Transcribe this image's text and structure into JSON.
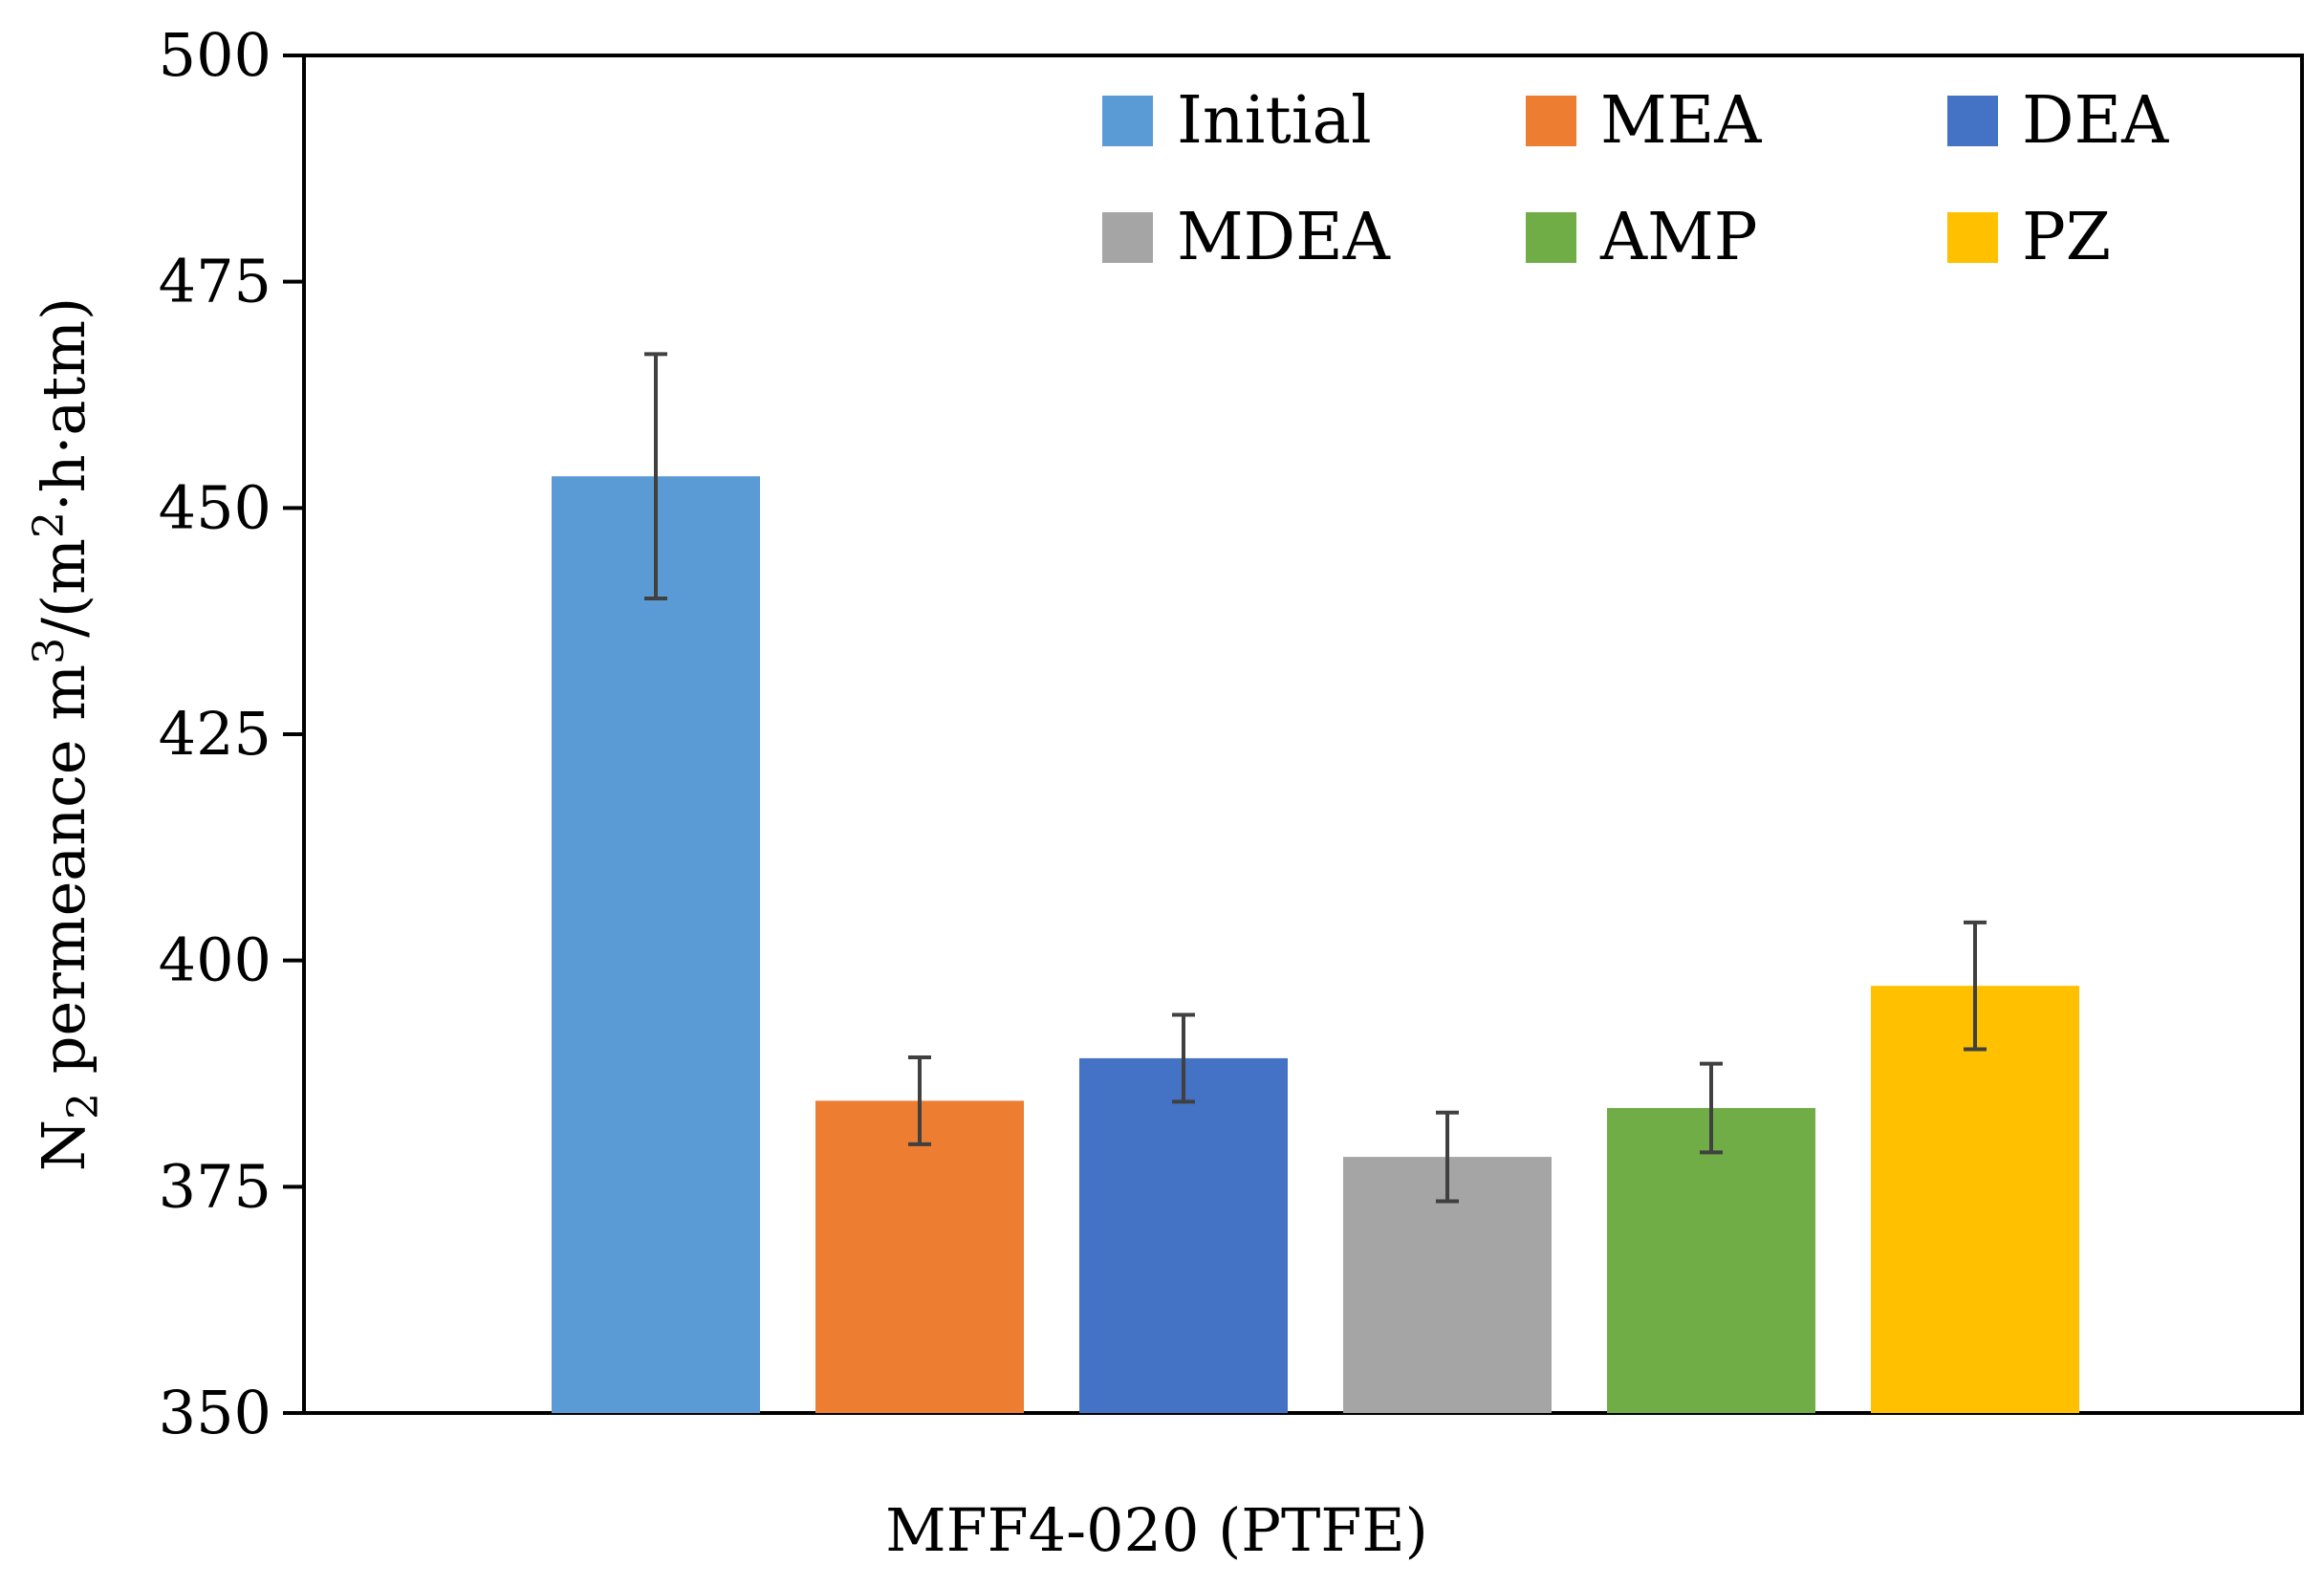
{
  "chart_data": {
    "type": "bar",
    "title": "",
    "xlabel": "MFF4-020 (PTFE)",
    "ylabel": {
      "prefix": "N",
      "prefix_subscript": "2",
      "middle": " permeance m",
      "middle_superscript": "3",
      "suffix_start": "/(m",
      "suffix_superscript": "2",
      "suffix_end": "·h·atm)"
    },
    "ylim": [
      350,
      500
    ],
    "yticks": [
      "350",
      "375",
      "400",
      "425",
      "450",
      "475",
      "500"
    ],
    "ytick_values": [
      350,
      375,
      400,
      425,
      450,
      475,
      500
    ],
    "grid": false,
    "legend_position": "top-right",
    "categories": [
      "MFF4-020 (PTFE)"
    ],
    "series": [
      {
        "name": "Initial",
        "values": [
          453.5
        ],
        "error": [
          13.5
        ],
        "color": "#5B9BD5"
      },
      {
        "name": "MEA",
        "values": [
          384.5
        ],
        "error": [
          4.8
        ],
        "color": "#ED7D31"
      },
      {
        "name": "DEA",
        "values": [
          389.2
        ],
        "error": [
          4.8
        ],
        "color": "#4472C4"
      },
      {
        "name": "MDEA",
        "values": [
          378.3
        ],
        "error": [
          4.9
        ],
        "color": "#A5A5A5"
      },
      {
        "name": "AMP",
        "values": [
          383.7
        ],
        "error": [
          4.9
        ],
        "color": "#70AD47"
      },
      {
        "name": "PZ",
        "values": [
          397.2
        ],
        "error": [
          7.0
        ],
        "color": "#FFC000"
      }
    ]
  }
}
